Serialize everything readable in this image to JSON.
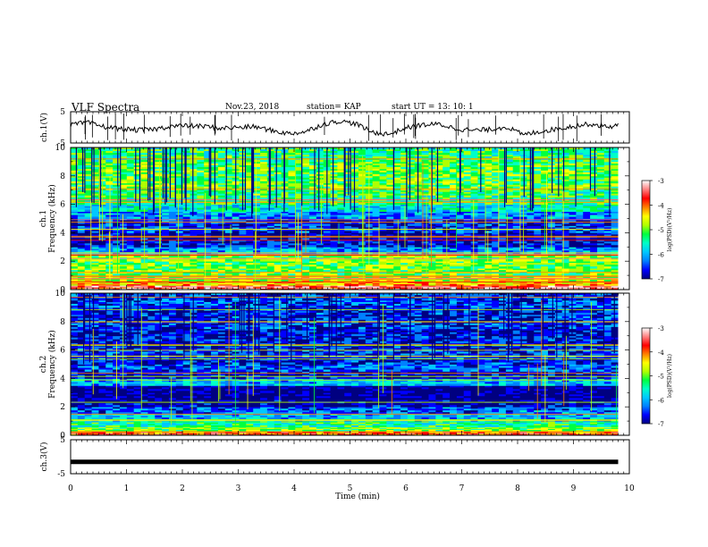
{
  "header": {
    "title": "VLF  Spectra",
    "date": "Nov.23, 2018",
    "station": "station= KAP",
    "start": "start  UT  =   13: 10: 1"
  },
  "colormap": [
    "#000080",
    "#0000ff",
    "#0080ff",
    "#00c8ff",
    "#00ffc8",
    "#00ff40",
    "#b0ff00",
    "#ffff00",
    "#ff8000",
    "#ff0000",
    "#ff8080",
    "#ffffff"
  ],
  "chart_data": [
    {
      "type": "line",
      "panel": "ch1-waveform",
      "ylabel": "ch.1(V)",
      "ylim": [
        -5,
        5
      ],
      "yticks": [
        "5",
        "-5"
      ],
      "xlim": [
        0,
        10
      ],
      "x": [
        0,
        0.3,
        0.6,
        0.9,
        1.2,
        1.5,
        1.8,
        2.1,
        2.4,
        2.7,
        3.0,
        3.3,
        3.6,
        3.9,
        4.2,
        4.5,
        4.8,
        5.1,
        5.4,
        5.7,
        6.0,
        6.3,
        6.6,
        6.9,
        7.2,
        7.5,
        7.8,
        8.1,
        8.4,
        8.7,
        9.0,
        9.3,
        9.6,
        9.8
      ],
      "values": [
        0.8,
        1.5,
        0.2,
        -0.5,
        -0.9,
        -0.6,
        0.4,
        0.5,
        0.3,
        -0.3,
        0.0,
        0.2,
        -1.0,
        -2.0,
        -1.4,
        0.9,
        2.0,
        1.2,
        -1.6,
        -2.2,
        -0.2,
        0.8,
        1.0,
        -0.4,
        -1.0,
        -0.7,
        0.2,
        -2.4,
        -1.3,
        -0.5,
        0.4,
        1.1,
        0.2,
        0.6
      ]
    },
    {
      "type": "heatmap",
      "panel": "ch1-spectrogram",
      "ylabel": "ch.1\nFrequency (kHz)",
      "ylim": [
        0,
        10
      ],
      "yticks": [
        "0",
        "2",
        "4",
        "6",
        "8",
        "10"
      ],
      "xlim": [
        0,
        9.8
      ],
      "band_edges_khz": [
        0,
        0.3,
        0.6,
        1.0,
        1.5,
        2.0,
        2.5,
        3.0,
        3.5,
        4.0,
        4.5,
        5.0,
        5.5,
        6.0,
        6.5,
        7.0,
        7.5,
        8.0,
        8.5,
        9.0,
        9.5,
        10.0
      ],
      "band_level_log_psd": [
        -3.6,
        -4.4,
        -4.7,
        -5.0,
        -5.0,
        -4.9,
        -6.0,
        -6.6,
        -6.8,
        -6.4,
        -6.5,
        -6.1,
        -5.6,
        -5.3,
        -5.2,
        -5.0,
        -5.1,
        -5.0,
        -5.1,
        -5.2,
        -5.3
      ],
      "colorbar": {
        "label": "log(PSD)(V²/Hz)",
        "min": -7,
        "max": -3,
        "ticks": [
          "-3",
          "-4",
          "-5",
          "-6",
          "-7"
        ]
      }
    },
    {
      "type": "heatmap",
      "panel": "ch2-spectrogram",
      "ylabel": "ch.2\nFrequency (kHz)",
      "ylim": [
        0,
        10
      ],
      "yticks": [
        "0",
        "2",
        "4",
        "6",
        "8",
        "10"
      ],
      "xlim": [
        0,
        9.8
      ],
      "band_edges_khz": [
        0,
        0.3,
        0.6,
        1.0,
        1.5,
        2.0,
        2.5,
        3.0,
        3.5,
        4.0,
        4.5,
        5.0,
        5.5,
        6.0,
        6.5,
        7.0,
        7.5,
        8.0,
        8.5,
        9.0,
        9.5,
        10.0
      ],
      "band_level_log_psd": [
        -4.0,
        -5.0,
        -5.4,
        -5.9,
        -6.2,
        -6.8,
        -6.9,
        -6.9,
        -5.9,
        -6.6,
        -6.3,
        -6.5,
        -6.4,
        -6.5,
        -6.5,
        -6.6,
        -6.4,
        -6.5,
        -6.5,
        -6.3,
        -6.4
      ],
      "colorbar": {
        "label": "log(PSD)(V²/Hz)",
        "min": -7,
        "max": -3,
        "ticks": [
          "-3",
          "-4",
          "-5",
          "-6",
          "-7"
        ]
      }
    },
    {
      "type": "line",
      "panel": "ch3-waveform",
      "ylabel": "ch.3(V)",
      "ylim": [
        -5,
        5
      ],
      "yticks": [
        "5",
        "-5"
      ],
      "xlim": [
        0,
        10
      ],
      "x": [
        0,
        9.8
      ],
      "values": [
        -1.5,
        -1.5
      ],
      "xlabel": "Time  (min)",
      "xticks": [
        "0",
        "1",
        "2",
        "3",
        "4",
        "5",
        "6",
        "7",
        "8",
        "9",
        "10"
      ]
    }
  ]
}
